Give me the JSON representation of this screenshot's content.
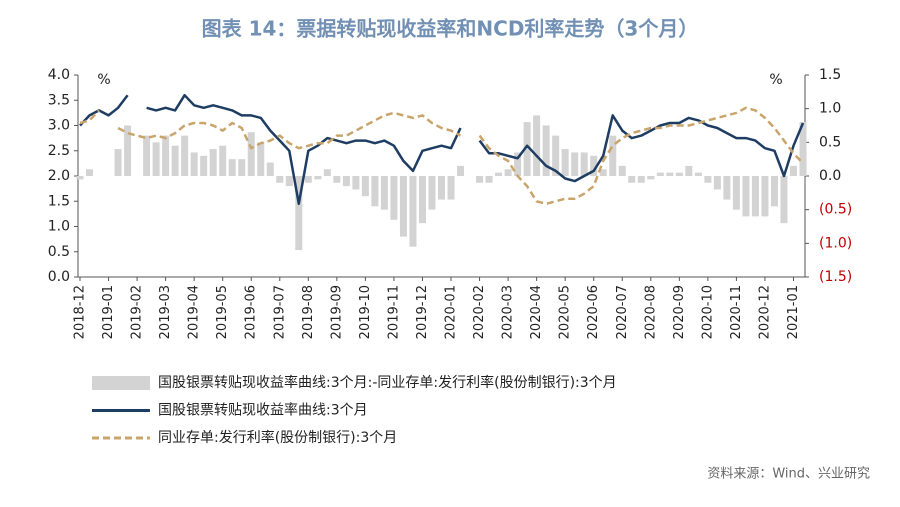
{
  "chart_data": {
    "type": "bar-line",
    "title": "图表 14：票据转贴现收益率和NCD利率走势（3个月）",
    "y_unit_label": "%",
    "y2_unit_label": "%",
    "source": "资料来源：Wind、兴业研究",
    "categories": [
      "2018-12",
      null,
      null,
      "2019-01",
      null,
      null,
      "2019-02",
      null,
      null,
      "2019-03",
      null,
      null,
      "2019-04",
      null,
      null,
      "2019-05",
      null,
      null,
      "2019-06",
      null,
      null,
      "2019-07",
      null,
      null,
      "2019-08",
      null,
      null,
      "2019-09",
      null,
      null,
      "2019-10",
      null,
      null,
      "2019-11",
      null,
      null,
      "2019-12",
      null,
      null,
      "2020-01",
      null,
      null,
      "2020-02",
      null,
      null,
      "2020-03",
      null,
      null,
      "2020-04",
      null,
      null,
      "2020-05",
      null,
      null,
      "2020-06",
      null,
      null,
      "2020-07",
      null,
      null,
      "2020-08",
      null,
      null,
      "2020-09",
      null,
      null,
      "2020-10",
      null,
      null,
      "2020-11",
      null,
      null,
      "2020-12",
      null,
      null,
      "2021-01",
      null
    ],
    "ylim": [
      0,
      4
    ],
    "yticks": [
      {
        "value": 0,
        "label": "0.0"
      },
      0.5,
      {
        "value": 1,
        "label": "1.0"
      },
      1.5,
      {
        "value": 2,
        "label": "2.0"
      },
      2.5,
      {
        "value": 3,
        "label": "3.0"
      },
      3.5,
      {
        "value": 4,
        "label": "4.0"
      }
    ],
    "y2lim": [
      -1.5,
      1.5
    ],
    "y2ticks": [
      {
        "value": -1.5,
        "label": "(1.5)"
      },
      {
        "value": -1,
        "label": "(1.0)"
      },
      {
        "value": -0.5,
        "label": "(0.5)"
      },
      {
        "value": 0,
        "label": "0.0"
      },
      0.5,
      {
        "value": 1,
        "label": "1.0"
      },
      1.5
    ],
    "y2tick_negative_color": "#c00000",
    "series": [
      {
        "name": "国股银票转贴现收益率曲线:3个月:-同业存单:发行利率(股份制银行):3个月",
        "kind": "bar",
        "axis": "y2",
        "color": "#d3d3d3",
        "values": [
          -0.05,
          0.1,
          0,
          null,
          0.4,
          0.75,
          null,
          0.6,
          0.5,
          0.6,
          0.45,
          0.6,
          0.35,
          0.3,
          0.4,
          0.45,
          0.25,
          0.25,
          0.65,
          0.5,
          0.2,
          -0.1,
          -0.15,
          -1.1,
          -0.1,
          -0.05,
          0.1,
          -0.1,
          -0.15,
          -0.2,
          -0.3,
          -0.45,
          -0.5,
          -0.65,
          -0.9,
          -1.05,
          -0.7,
          -0.5,
          -0.35,
          -0.35,
          0.15,
          null,
          -0.1,
          -0.1,
          0.05,
          0.1,
          0.35,
          0.8,
          0.9,
          0.75,
          0.6,
          0.4,
          0.35,
          0.35,
          0.3,
          0.1,
          0.6,
          0.15,
          -0.1,
          -0.1,
          -0.05,
          0.05,
          0.05,
          0.05,
          0.15,
          0.05,
          -0.1,
          -0.2,
          -0.35,
          -0.5,
          -0.6,
          -0.6,
          -0.6,
          -0.45,
          -0.7,
          0.15,
          0.8
        ]
      },
      {
        "name": "国股银票转贴现收益率曲线:3个月",
        "kind": "line",
        "color": "#1f3d63",
        "values": [
          3.0,
          3.2,
          3.3,
          3.2,
          3.35,
          3.6,
          null,
          3.35,
          3.3,
          3.35,
          3.3,
          3.6,
          3.4,
          3.35,
          3.4,
          3.35,
          3.3,
          3.2,
          3.2,
          3.15,
          2.9,
          2.7,
          2.5,
          1.45,
          2.5,
          2.6,
          2.75,
          2.7,
          2.65,
          2.7,
          2.7,
          2.65,
          2.7,
          2.6,
          2.3,
          2.1,
          2.5,
          2.55,
          2.6,
          2.55,
          2.95,
          null,
          2.7,
          2.45,
          2.45,
          2.4,
          2.35,
          2.6,
          2.4,
          2.2,
          2.1,
          1.95,
          1.9,
          2.0,
          2.1,
          2.4,
          3.2,
          2.9,
          2.75,
          2.8,
          2.9,
          3.0,
          3.05,
          3.05,
          3.15,
          3.1,
          3.0,
          2.95,
          2.85,
          2.75,
          2.75,
          2.7,
          2.55,
          2.5,
          2.0,
          2.6,
          3.05
        ]
      },
      {
        "name": "同业存单:发行利率(股份制银行):3个月",
        "kind": "line",
        "dashed": true,
        "color": "#c9a46b",
        "values": [
          3.05,
          3.1,
          3.3,
          null,
          2.95,
          2.85,
          2.8,
          2.75,
          2.8,
          2.75,
          2.85,
          3.0,
          3.05,
          3.05,
          3.0,
          2.9,
          3.05,
          2.95,
          2.55,
          2.65,
          2.7,
          2.8,
          2.65,
          2.55,
          2.6,
          2.65,
          2.65,
          2.8,
          2.8,
          2.9,
          3.0,
          3.1,
          3.2,
          3.25,
          3.2,
          3.15,
          3.2,
          3.05,
          2.95,
          2.9,
          2.8,
          null,
          2.8,
          2.55,
          2.4,
          2.3,
          2.0,
          1.8,
          1.5,
          1.45,
          1.5,
          1.55,
          1.55,
          1.65,
          1.8,
          2.3,
          2.6,
          2.75,
          2.85,
          2.9,
          2.95,
          2.95,
          3.0,
          3.0,
          3.0,
          3.05,
          3.1,
          3.15,
          3.2,
          3.25,
          3.35,
          3.3,
          3.15,
          2.95,
          2.7,
          2.45,
          2.25
        ]
      }
    ]
  }
}
